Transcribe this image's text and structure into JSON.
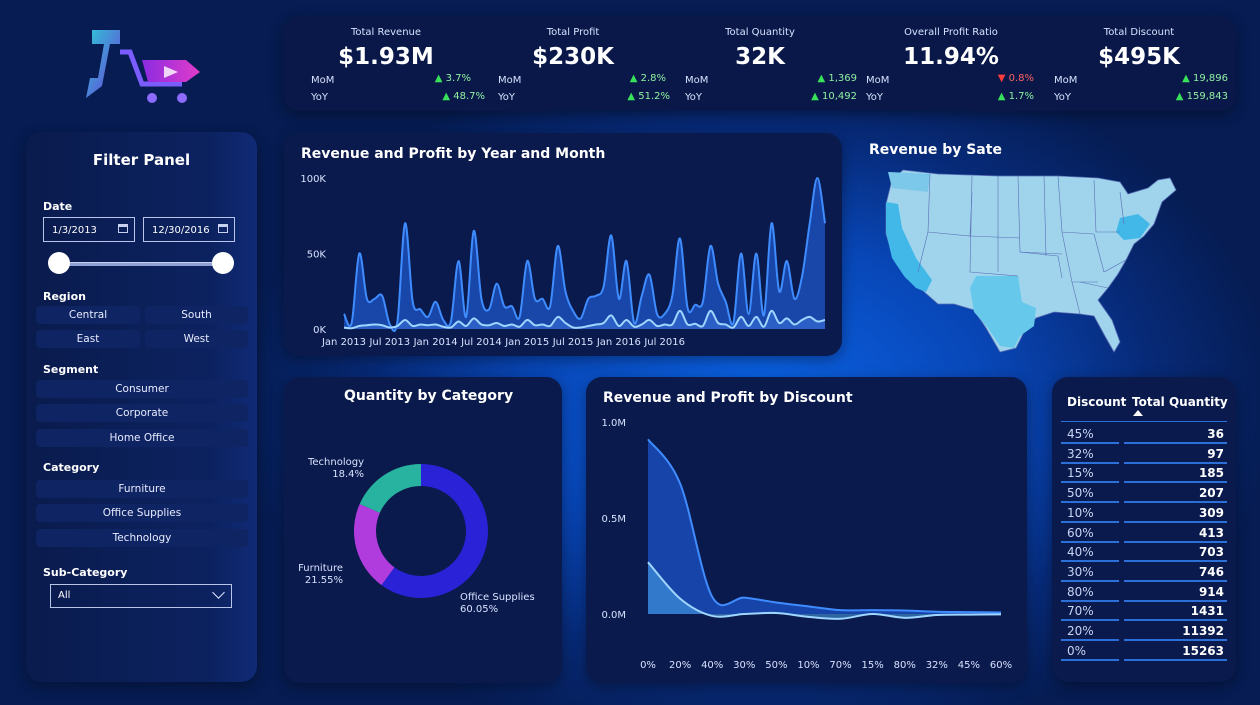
{
  "kpis": [
    {
      "title": "Total Revenue",
      "value": "$1.93M",
      "mom_label": "MoM",
      "mom": "3.7%",
      "mom_dir": "up",
      "yoy_label": "YoY",
      "yoy": "48.7%",
      "yoy_dir": "up"
    },
    {
      "title": "Total Profit",
      "value": "$230K",
      "mom_label": "MoM",
      "mom": "2.8%",
      "mom_dir": "up",
      "yoy_label": "YoY",
      "yoy": "51.2%",
      "yoy_dir": "up"
    },
    {
      "title": "Total Quantity",
      "value": "32K",
      "mom_label": "MoM",
      "mom": "1,369",
      "mom_dir": "up",
      "yoy_label": "YoY",
      "yoy": "10,492",
      "yoy_dir": "up"
    },
    {
      "title": "Overall Profit Ratio",
      "value": "11.94%",
      "mom_label": "MoM",
      "mom": "0.8%",
      "mom_dir": "down",
      "yoy_label": "YoY",
      "yoy": "1.7%",
      "yoy_dir": "up"
    },
    {
      "title": "Total Discount",
      "value": "$495K",
      "mom_label": "MoM",
      "mom": "19,896",
      "mom_dir": "up",
      "yoy_label": "YoY",
      "yoy": "159,843",
      "yoy_dir": "up"
    }
  ],
  "filter_panel": {
    "title": "Filter Panel",
    "date_label": "Date",
    "date_start": "1/3/2013",
    "date_end": "12/30/2016",
    "region_label": "Region",
    "regions": [
      "Central",
      "South",
      "East",
      "West"
    ],
    "segment_label": "Segment",
    "segments": [
      "Consumer",
      "Corporate",
      "Home Office"
    ],
    "category_label": "Category",
    "categories": [
      "Furniture",
      "Office Supplies",
      "Technology"
    ],
    "subcategory_label": "Sub-Category",
    "subcategory_value": "All"
  },
  "map": {
    "title": "Revenue by Sate"
  },
  "table": {
    "col1": "Discount",
    "col2": "Total Quantity",
    "rows": [
      {
        "d": "45%",
        "q": "36"
      },
      {
        "d": "32%",
        "q": "97"
      },
      {
        "d": "15%",
        "q": "185"
      },
      {
        "d": "50%",
        "q": "207"
      },
      {
        "d": "10%",
        "q": "309"
      },
      {
        "d": "60%",
        "q": "413"
      },
      {
        "d": "40%",
        "q": "703"
      },
      {
        "d": "30%",
        "q": "746"
      },
      {
        "d": "80%",
        "q": "914"
      },
      {
        "d": "70%",
        "q": "1431"
      },
      {
        "d": "20%",
        "q": "11392"
      },
      {
        "d": "0%",
        "q": "15263"
      }
    ]
  },
  "colors": {
    "accent": "#1f63e8",
    "revenue_area": "#1d55c8",
    "profit_line": "#9fd6ff",
    "donut_office": "#2a22d6",
    "donut_furniture": "#b13cde",
    "donut_tech": "#27b3a0"
  },
  "chart_data": [
    {
      "type": "area",
      "title": "Revenue and Profit by Year and Month",
      "x_ticks": [
        "Jan 2013",
        "Jul 2013",
        "Jan 2014",
        "Jul 2014",
        "Jan 2015",
        "Jul 2015",
        "Jan 2016",
        "Jul 2016"
      ],
      "y_ticks": [
        "0K",
        "50K",
        "100K"
      ],
      "ylim": [
        0,
        100000
      ],
      "series": [
        {
          "values": [
            10000,
            4000,
            50000,
            20000,
            20000,
            22000,
            3000,
            5000,
            70000,
            18000,
            13000,
            8000,
            18000,
            6000,
            5000,
            45000,
            8000,
            65000,
            20000,
            13000,
            30000,
            15000,
            15000,
            8000,
            45000,
            20000,
            20000,
            15000,
            55000,
            25000,
            12000,
            7000,
            20000,
            22000,
            28000,
            62000,
            20000,
            45000,
            4000,
            22000,
            36000,
            10000,
            10000,
            22000,
            60000,
            14000,
            16000,
            18000,
            55000,
            30000,
            18000,
            4000,
            50000,
            10000,
            50000,
            9000,
            70000,
            25000,
            45000,
            20000,
            35000,
            70000,
            100000,
            70000
          ]
        },
        {
          "values": [
            1000,
            500,
            2000,
            2500,
            3000,
            2500,
            1000,
            2000,
            6000,
            2000,
            3000,
            2500,
            3000,
            1500,
            1000,
            5000,
            2000,
            7000,
            3000,
            2500,
            4000,
            2000,
            3000,
            1500,
            6000,
            2500,
            3000,
            2000,
            8000,
            4000,
            1000,
            1000,
            2000,
            3000,
            4000,
            9000,
            2000,
            6000,
            1500,
            3000,
            6000,
            2000,
            3000,
            3000,
            12000,
            3000,
            3500,
            2000,
            12000,
            4000,
            3000,
            1000,
            8000,
            2000,
            8000,
            1500,
            12000,
            4000,
            7000,
            3000,
            6000,
            8000,
            5000,
            6000
          ]
        }
      ]
    },
    {
      "type": "pie",
      "title": "Quantity by Category",
      "categories": [
        "Office Supplies",
        "Furniture",
        "Technology"
      ],
      "values": [
        60.05,
        21.55,
        18.4
      ],
      "labels": [
        "60.05%",
        "21.55%",
        "18.4%"
      ]
    },
    {
      "type": "area",
      "title": "Revenue and Profit by Discount",
      "categories": [
        "0%",
        "20%",
        "40%",
        "30%",
        "50%",
        "10%",
        "70%",
        "15%",
        "80%",
        "32%",
        "45%",
        "60%"
      ],
      "y_ticks": [
        "0.0M",
        "0.5M",
        "1.0M"
      ],
      "ylim": [
        0,
        1000000
      ],
      "series": [
        {
          "values": [
            910000,
            680000,
            90000,
            85000,
            60000,
            40000,
            20000,
            20000,
            18000,
            12000,
            10000,
            8000
          ]
        },
        {
          "values": [
            270000,
            80000,
            -10000,
            0,
            5000,
            -15000,
            -25000,
            0,
            -20000,
            -5000,
            -3000,
            -2000
          ]
        }
      ]
    }
  ]
}
